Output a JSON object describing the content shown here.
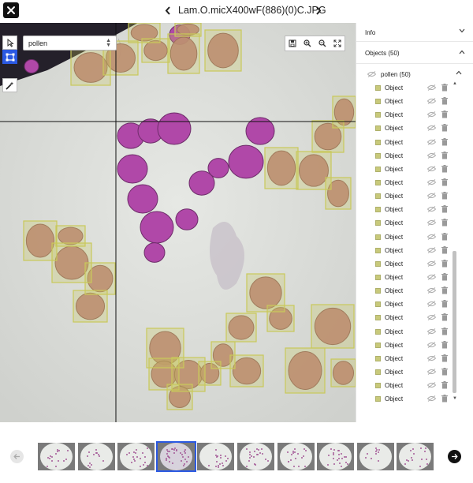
{
  "header": {
    "file_name": "Lam.O.micX400wF(886)(0)C.JPG",
    "close_icon": "close-x-icon",
    "prev_icon": "chevron-left-icon",
    "next_icon": "chevron-right-icon"
  },
  "toolbar": {
    "tools": [
      {
        "name": "pointer",
        "icon": "pointer-cursor-icon",
        "active": false
      },
      {
        "name": "bbox",
        "icon": "bounding-box-icon",
        "active": true
      },
      {
        "name": "magic",
        "icon": "magic-wand-icon",
        "active": false
      }
    ],
    "class_select": {
      "value": "pollen"
    },
    "zoom_controls": [
      "save-icon",
      "zoom-in-icon",
      "zoom-out-icon",
      "fit-screen-icon"
    ]
  },
  "panel": {
    "info_label": "Info",
    "objects_label": "Objects (50)",
    "group_label": "pollen (50)",
    "object_label": "Object",
    "visible_object_rows": 24,
    "colors": {
      "swatch": "#c8c97a",
      "box": "#c9c95a"
    }
  },
  "filmstrip": {
    "thumbnail_count": 10,
    "selected_index": 3,
    "colors": {
      "selected": "#2b59e3"
    }
  },
  "colors": {
    "accent": "#2b59e3",
    "stained_pollen": "#b048a8",
    "unstained_pollen": "#b97a7a"
  }
}
